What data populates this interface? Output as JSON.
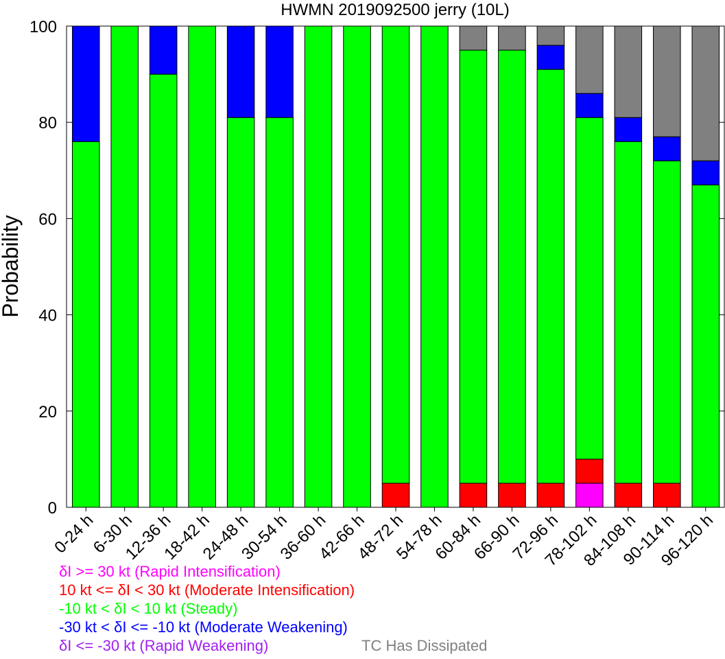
{
  "chart_data": {
    "type": "bar",
    "stacked": true,
    "title": "HWMN 2019092500 jerry (10L)",
    "xlabel": "",
    "ylabel": "Probability",
    "ylim": [
      0,
      100
    ],
    "yticks": [
      0,
      20,
      40,
      60,
      80,
      100
    ],
    "grid": false,
    "categories": [
      "0-24 h",
      "6-30 h",
      "12-36 h",
      "18-42 h",
      "24-48 h",
      "30-54 h",
      "36-60 h",
      "42-66 h",
      "48-72 h",
      "54-78 h",
      "60-84 h",
      "66-90 h",
      "72-96 h",
      "78-102 h",
      "84-108 h",
      "90-114 h",
      "96-120 h"
    ],
    "series": [
      {
        "name": "δI >= 30 kt (Rapid Intensification)",
        "color": "#ff00ff",
        "values": [
          0,
          0,
          0,
          0,
          0,
          0,
          0,
          0,
          0,
          0,
          0,
          0,
          0,
          5,
          0,
          0,
          0
        ]
      },
      {
        "name": "10 kt <= δI < 30 kt (Moderate Intensification)",
        "color": "#ff0000",
        "values": [
          0,
          0,
          0,
          0,
          0,
          0,
          0,
          0,
          5,
          0,
          5,
          5,
          5,
          5,
          5,
          5,
          0
        ]
      },
      {
        "name": "-10 kt < δI < 10 kt (Steady)",
        "color": "#00ff00",
        "values": [
          76,
          100,
          90,
          100,
          81,
          81,
          100,
          100,
          95,
          100,
          90,
          90,
          86,
          71,
          71,
          67,
          67
        ]
      },
      {
        "name": "-30 kt < δI <= -10 kt (Moderate Weakening)",
        "color": "#0000ff",
        "values": [
          24,
          0,
          10,
          0,
          19,
          19,
          0,
          0,
          0,
          0,
          0,
          0,
          5,
          5,
          5,
          5,
          5
        ]
      },
      {
        "name": "δI <= -30 kt (Rapid Weakening)",
        "color": "#a020f0",
        "values": [
          0,
          0,
          0,
          0,
          0,
          0,
          0,
          0,
          0,
          0,
          0,
          0,
          0,
          0,
          0,
          0,
          0
        ]
      },
      {
        "name": "TC Has Dissipated",
        "color": "#808080",
        "values": [
          0,
          0,
          0,
          0,
          0,
          0,
          0,
          0,
          0,
          0,
          5,
          5,
          4,
          14,
          19,
          23,
          28
        ]
      }
    ],
    "legend_position": "bottom-left"
  }
}
